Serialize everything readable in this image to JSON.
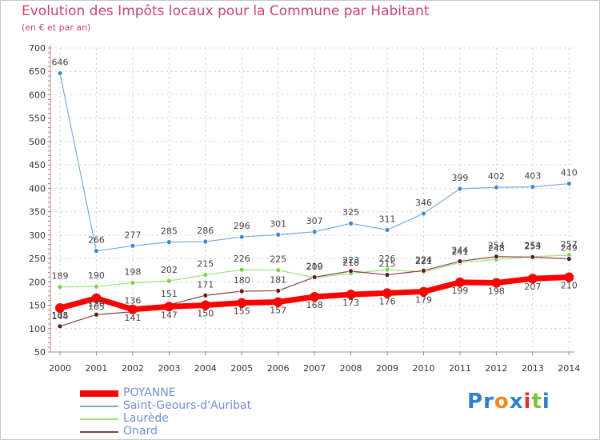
{
  "chart_data": {
    "type": "line",
    "title": "Evolution des Impôts locaux pour la Commune par Habitant",
    "subtitle": "(en € et par an)",
    "xlabel": "",
    "ylabel": "",
    "ylim": [
      50,
      700
    ],
    "yticks": [
      "50",
      "100",
      "150",
      "200",
      "250",
      "300",
      "350",
      "400",
      "450",
      "500",
      "550",
      "600",
      "650",
      "700"
    ],
    "categories": [
      "2000",
      "2001",
      "2002",
      "2003",
      "2004",
      "2005",
      "2006",
      "2007",
      "2008",
      "2009",
      "2010",
      "2011",
      "2012",
      "2013",
      "2014"
    ],
    "series": [
      {
        "name": "POYANNE",
        "color": "#ff0000",
        "markerColor": "#ff0000",
        "width": 7,
        "markerR": 6,
        "labelDy": 14,
        "values": [
          144,
          165,
          141,
          147,
          150,
          155,
          157,
          168,
          173,
          176,
          179,
          199,
          198,
          207,
          210
        ],
        "labels": [
          "144",
          "165",
          "141",
          "147",
          "150",
          "155",
          "157",
          "168",
          "173",
          "176",
          "179",
          "199",
          "198",
          "207",
          "210"
        ]
      },
      {
        "name": "Saint-Geours-d'Auribat",
        "color": "#7fa9d8",
        "markerColor": "#3d8ad0",
        "width": 1.2,
        "markerR": 3,
        "labelDy": -10,
        "values": [
          646,
          266,
          277,
          285,
          286,
          296,
          301,
          307,
          325,
          311,
          346,
          399,
          402,
          403,
          410
        ],
        "labels": [
          "646",
          "266",
          "277",
          "285",
          "286",
          "296",
          "301",
          "307",
          "325",
          "311",
          "346",
          "399",
          "402",
          "403",
          "410"
        ]
      },
      {
        "name": "Laurède",
        "color": "#9fe07f",
        "markerColor": "#7cd050",
        "width": 1.2,
        "markerR": 3,
        "labelDy": -10,
        "values": [
          189,
          190,
          198,
          202,
          215,
          226,
          225,
          209,
          218,
          226,
          221,
          241,
          248,
          254,
          257
        ],
        "labels": [
          "189",
          "190",
          "198",
          "202",
          "215",
          "226",
          "225",
          "209",
          "218",
          "226",
          "221",
          "241",
          "248",
          "254",
          "257"
        ]
      },
      {
        "name": "Onard",
        "color": "#8a4040",
        "markerColor": "#5c1a1a",
        "width": 1.2,
        "markerR": 3,
        "labelDy": -10,
        "values": [
          105,
          130,
          136,
          151,
          171,
          180,
          181,
          210,
          223,
          215,
          224,
          244,
          254,
          253,
          249
        ],
        "labels": [
          "105",
          "130",
          "136",
          "151",
          "171",
          "180",
          "181",
          "210",
          "223",
          "215",
          "224",
          "244",
          "254",
          "253",
          "249"
        ]
      }
    ]
  },
  "legend": {
    "items": [
      {
        "label": "POYANNE",
        "color": "#ff0000",
        "thick": 8
      },
      {
        "label": "Saint-Geours-d'Auribat",
        "color": "#7fa9d8",
        "thick": 2
      },
      {
        "label": "Laurède",
        "color": "#9fe07f",
        "thick": 2
      },
      {
        "label": "Onard",
        "color": "#8a4040",
        "thick": 2
      }
    ]
  },
  "logo": {
    "text": "Proxiti",
    "letters": [
      "P",
      "r",
      "o",
      "x",
      "i",
      "t",
      "i"
    ],
    "colors": [
      "#2f7fd0",
      "#2f7fd0",
      "#f08a20",
      "#2f7fd0",
      "#e03030",
      "#7cc040",
      "#2f7fd0"
    ]
  }
}
